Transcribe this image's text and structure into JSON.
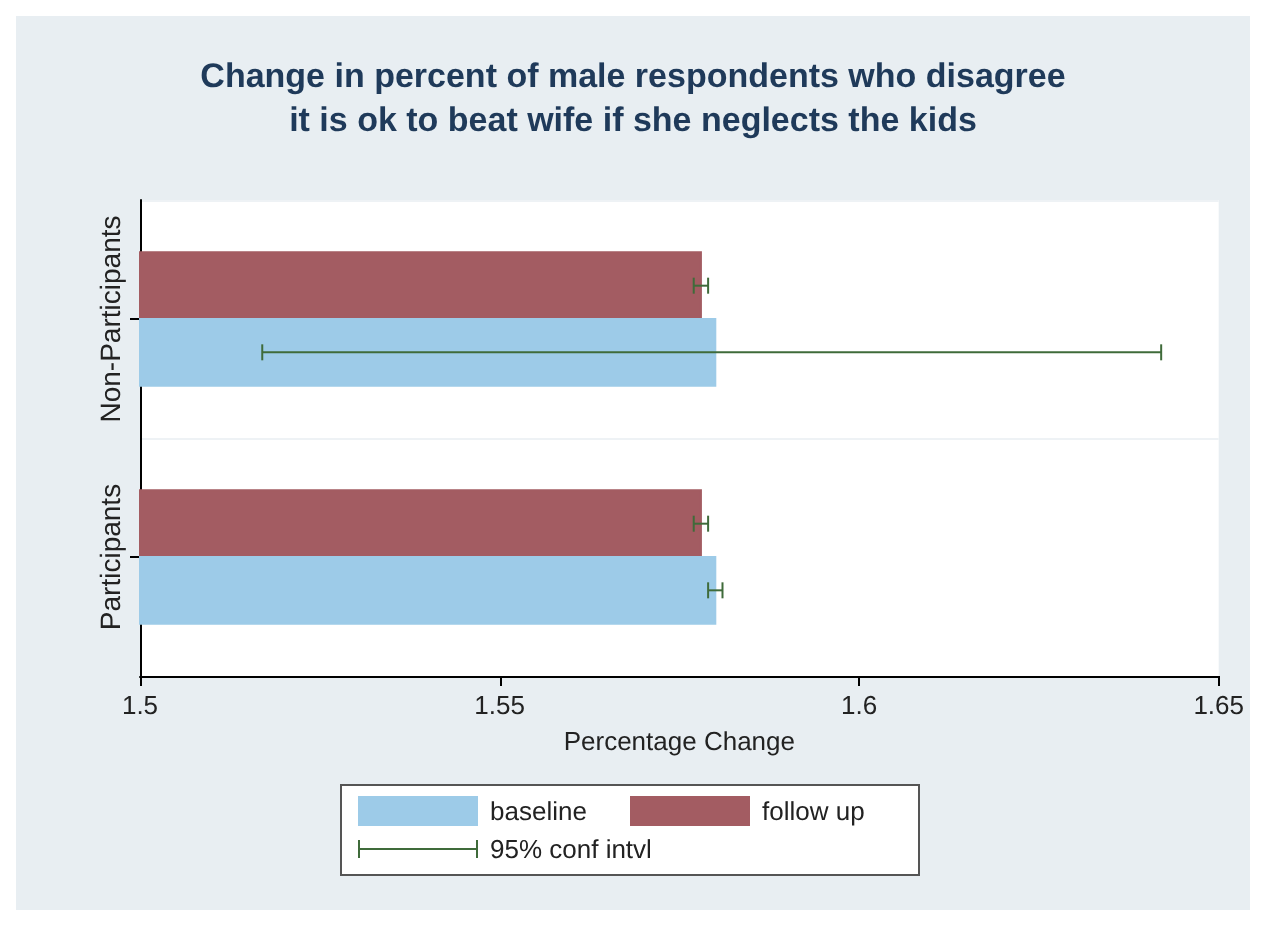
{
  "chart_data": {
    "type": "bar",
    "orientation": "horizontal",
    "title": "Change in percent of male respondents who disagree\nit is ok to beat wife if she neglects the kids",
    "xlabel": "Percentage Change",
    "categories": [
      "Non-Participants",
      "Participants"
    ],
    "series": [
      {
        "name": "baseline",
        "color": "#9dcbe8",
        "values": [
          1.58,
          1.58
        ],
        "errors": [
          [
            1.517,
            1.642
          ],
          [
            1.579,
            1.581
          ]
        ]
      },
      {
        "name": "follow up",
        "color": "#a35c62",
        "values": [
          1.578,
          1.578
        ],
        "errors": [
          [
            1.577,
            1.579
          ],
          [
            1.577,
            1.579
          ]
        ]
      }
    ],
    "xlim": [
      1.5,
      1.65
    ],
    "xticks": [
      1.5,
      1.55,
      1.6,
      1.65
    ],
    "grid": "y",
    "legend": "bottom",
    "annotations": [
      "95% conf intvl"
    ]
  }
}
